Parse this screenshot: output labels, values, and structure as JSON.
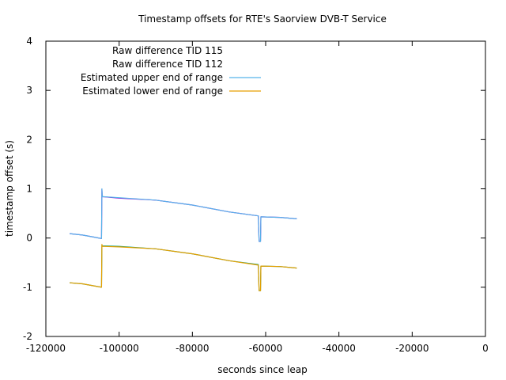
{
  "chart_data": {
    "type": "line",
    "title": "Timestamp offsets for RTE's Saorview DVB-T Service",
    "xlabel": "seconds since leap",
    "ylabel": "timestamp offset (s)",
    "xlim": [
      -120000,
      0
    ],
    "ylim": [
      -2,
      4
    ],
    "x_ticks": [
      -120000,
      -100000,
      -80000,
      -60000,
      -40000,
      -20000,
      0
    ],
    "y_ticks": [
      -2,
      -1,
      0,
      1,
      2,
      3,
      4
    ],
    "x_tick_labels": [
      "-120000",
      "-100000",
      "-80000",
      "-60000",
      "-40000",
      "-20000",
      "0"
    ],
    "y_tick_labels": [
      "-2",
      "-1",
      "0",
      "1",
      "2",
      "3",
      "4"
    ],
    "grid": false,
    "legend_position": "top-left",
    "series": [
      {
        "name": "Raw difference TID 115",
        "color": "#9400d3",
        "points": [
          [
            -113500,
            0.09
          ],
          [
            -110000,
            0.06
          ],
          [
            -107000,
            0.02
          ],
          [
            -104800,
            -0.01
          ],
          [
            -104700,
            0.99
          ],
          [
            -104600,
            0.84
          ],
          [
            -100000,
            0.81
          ],
          [
            -90000,
            0.77
          ],
          [
            -80000,
            0.67
          ],
          [
            -70000,
            0.53
          ],
          [
            -62000,
            0.45
          ],
          [
            -61800,
            -0.07
          ],
          [
            -61400,
            -0.07
          ],
          [
            -61300,
            0.43
          ],
          [
            -56000,
            0.42
          ],
          [
            -51500,
            0.39
          ]
        ]
      },
      {
        "name": "Raw difference TID 112",
        "color": "#009e73",
        "points": [
          [
            -113500,
            -0.91
          ],
          [
            -110000,
            -0.93
          ],
          [
            -107000,
            -0.97
          ],
          [
            -104800,
            -1.0
          ],
          [
            -104700,
            -0.15
          ],
          [
            -104600,
            -0.16
          ],
          [
            -100000,
            -0.17
          ],
          [
            -90000,
            -0.22
          ],
          [
            -80000,
            -0.32
          ],
          [
            -70000,
            -0.46
          ],
          [
            -62000,
            -0.54
          ],
          [
            -61800,
            -1.07
          ],
          [
            -61400,
            -1.07
          ],
          [
            -61300,
            -0.57
          ],
          [
            -56000,
            -0.58
          ],
          [
            -51500,
            -0.61
          ]
        ]
      },
      {
        "name": "Estimated upper end of range",
        "color": "#56b4e9",
        "points": [
          [
            -113500,
            0.09
          ],
          [
            -110000,
            0.06
          ],
          [
            -107000,
            0.02
          ],
          [
            -104800,
            -0.01
          ],
          [
            -104700,
            1.0
          ],
          [
            -104600,
            0.84
          ],
          [
            -100000,
            0.82
          ],
          [
            -90000,
            0.77
          ],
          [
            -80000,
            0.67
          ],
          [
            -70000,
            0.53
          ],
          [
            -62000,
            0.45
          ],
          [
            -61800,
            -0.07
          ],
          [
            -61400,
            -0.07
          ],
          [
            -61300,
            0.43
          ],
          [
            -56000,
            0.42
          ],
          [
            -51500,
            0.39
          ]
        ]
      },
      {
        "name": "Estimated lower end of range",
        "color": "#e69f00",
        "points": [
          [
            -113500,
            -0.91
          ],
          [
            -110000,
            -0.93
          ],
          [
            -107000,
            -0.97
          ],
          [
            -104800,
            -1.0
          ],
          [
            -104700,
            -0.13
          ],
          [
            -104600,
            -0.17
          ],
          [
            -100000,
            -0.18
          ],
          [
            -90000,
            -0.22
          ],
          [
            -80000,
            -0.32
          ],
          [
            -70000,
            -0.46
          ],
          [
            -62000,
            -0.55
          ],
          [
            -61800,
            -1.07
          ],
          [
            -61400,
            -1.07
          ],
          [
            -61300,
            -0.57
          ],
          [
            -56000,
            -0.58
          ],
          [
            -51500,
            -0.61
          ]
        ]
      }
    ]
  }
}
